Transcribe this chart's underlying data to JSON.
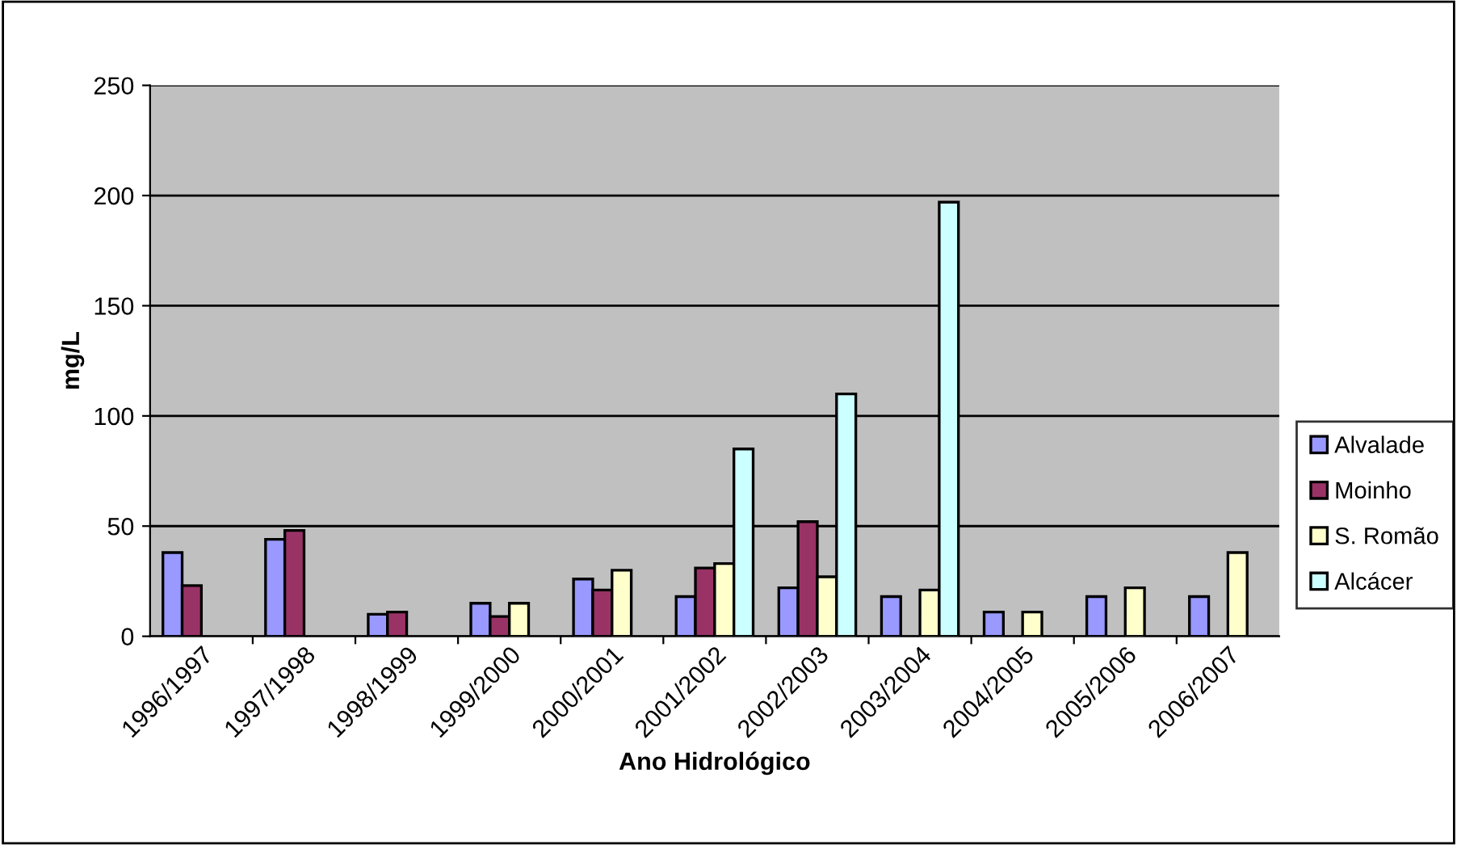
{
  "chart_data": {
    "type": "bar",
    "xlabel": "Ano Hidrológico",
    "ylabel": "mg/L",
    "categories": [
      "1996/1997",
      "1997/1998",
      "1998/1999",
      "1999/2000",
      "2000/2001",
      "2001/2002",
      "2002/2003",
      "2003/2004",
      "2004/2005",
      "2005/2006",
      "2006/2007"
    ],
    "series": [
      {
        "name": "Alvalade",
        "color": "#9999ff",
        "values": [
          38,
          44,
          10,
          15,
          26,
          18,
          22,
          18,
          11,
          18,
          18
        ]
      },
      {
        "name": "Moinho",
        "color": "#993366",
        "values": [
          23,
          48,
          11,
          9,
          21,
          31,
          52,
          null,
          null,
          null,
          null
        ]
      },
      {
        "name": "S. Romão",
        "color": "#ffffcc",
        "values": [
          null,
          null,
          null,
          15,
          30,
          33,
          27,
          21,
          11,
          22,
          38
        ]
      },
      {
        "name": "Alcácer",
        "color": "#ccffff",
        "values": [
          null,
          null,
          null,
          null,
          null,
          85,
          110,
          197,
          null,
          null,
          null
        ]
      }
    ],
    "ylim": [
      0,
      250
    ],
    "yticks": [
      0,
      50,
      100,
      150,
      200,
      250
    ],
    "grid": "y",
    "legend": "right"
  }
}
